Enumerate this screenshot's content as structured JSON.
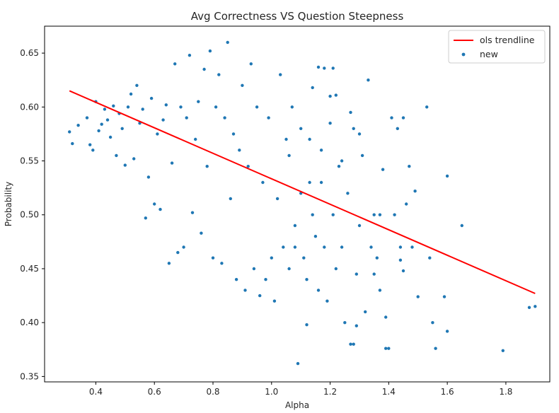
{
  "chart_data": {
    "type": "scatter",
    "title": "Avg Correctness VS Question Steepness",
    "xlabel": "Alpha",
    "ylabel": "Probability",
    "xlim": [
      0.225,
      1.95
    ],
    "ylim": [
      0.345,
      0.675
    ],
    "xticks": [
      0.4,
      0.6,
      0.8,
      1.0,
      1.2,
      1.4,
      1.6,
      1.8
    ],
    "xtick_labels": [
      "0.4",
      "0.6",
      "0.8",
      "1.0",
      "1.2",
      "1.4",
      "1.6",
      "1.8"
    ],
    "yticks": [
      0.35,
      0.4,
      0.45,
      0.5,
      0.55,
      0.6,
      0.65
    ],
    "ytick_labels": [
      "0.35",
      "0.40",
      "0.45",
      "0.50",
      "0.55",
      "0.60",
      "0.65"
    ],
    "grid": false,
    "legend_position": "top-right",
    "series": [
      {
        "name": "ols trendline",
        "kind": "line",
        "color": "#ff0000",
        "x": [
          0.31,
          1.9
        ],
        "y": [
          0.615,
          0.427
        ]
      },
      {
        "name": "new",
        "kind": "scatter",
        "color": "#1f77b4",
        "points": [
          [
            0.31,
            0.577
          ],
          [
            0.32,
            0.566
          ],
          [
            0.34,
            0.583
          ],
          [
            0.37,
            0.59
          ],
          [
            0.38,
            0.565
          ],
          [
            0.39,
            0.56
          ],
          [
            0.4,
            0.605
          ],
          [
            0.41,
            0.578
          ],
          [
            0.42,
            0.584
          ],
          [
            0.43,
            0.598
          ],
          [
            0.44,
            0.588
          ],
          [
            0.45,
            0.572
          ],
          [
            0.46,
            0.601
          ],
          [
            0.47,
            0.555
          ],
          [
            0.48,
            0.594
          ],
          [
            0.49,
            0.58
          ],
          [
            0.5,
            0.546
          ],
          [
            0.51,
            0.6
          ],
          [
            0.52,
            0.612
          ],
          [
            0.53,
            0.552
          ],
          [
            0.54,
            0.62
          ],
          [
            0.55,
            0.585
          ],
          [
            0.56,
            0.598
          ],
          [
            0.57,
            0.497
          ],
          [
            0.58,
            0.535
          ],
          [
            0.59,
            0.608
          ],
          [
            0.6,
            0.51
          ],
          [
            0.61,
            0.575
          ],
          [
            0.62,
            0.505
          ],
          [
            0.63,
            0.588
          ],
          [
            0.64,
            0.602
          ],
          [
            0.65,
            0.455
          ],
          [
            0.66,
            0.548
          ],
          [
            0.67,
            0.64
          ],
          [
            0.68,
            0.465
          ],
          [
            0.69,
            0.6
          ],
          [
            0.7,
            0.47
          ],
          [
            0.71,
            0.59
          ],
          [
            0.72,
            0.648
          ],
          [
            0.73,
            0.502
          ],
          [
            0.74,
            0.57
          ],
          [
            0.75,
            0.605
          ],
          [
            0.76,
            0.483
          ],
          [
            0.77,
            0.635
          ],
          [
            0.78,
            0.545
          ],
          [
            0.79,
            0.652
          ],
          [
            0.8,
            0.46
          ],
          [
            0.81,
            0.6
          ],
          [
            0.82,
            0.63
          ],
          [
            0.83,
            0.455
          ],
          [
            0.84,
            0.59
          ],
          [
            0.85,
            0.66
          ],
          [
            0.86,
            0.515
          ],
          [
            0.87,
            0.575
          ],
          [
            0.88,
            0.44
          ],
          [
            0.89,
            0.56
          ],
          [
            0.9,
            0.62
          ],
          [
            0.91,
            0.43
          ],
          [
            0.92,
            0.545
          ],
          [
            0.93,
            0.64
          ],
          [
            0.94,
            0.45
          ],
          [
            0.95,
            0.6
          ],
          [
            0.96,
            0.425
          ],
          [
            0.97,
            0.53
          ],
          [
            0.98,
            0.44
          ],
          [
            0.99,
            0.59
          ],
          [
            1.0,
            0.46
          ],
          [
            1.01,
            0.42
          ],
          [
            1.02,
            0.515
          ],
          [
            1.03,
            0.63
          ],
          [
            1.04,
            0.47
          ],
          [
            1.05,
            0.57
          ],
          [
            1.06,
            0.45
          ],
          [
            1.07,
            0.6
          ],
          [
            1.08,
            0.49
          ],
          [
            1.09,
            0.362
          ],
          [
            1.1,
            0.52
          ],
          [
            1.11,
            0.46
          ],
          [
            1.12,
            0.398
          ],
          [
            1.13,
            0.53
          ],
          [
            1.14,
            0.618
          ],
          [
            1.15,
            0.48
          ],
          [
            1.16,
            0.43
          ],
          [
            1.17,
            0.56
          ],
          [
            1.18,
            0.47
          ],
          [
            1.19,
            0.42
          ],
          [
            1.2,
            0.61
          ],
          [
            1.21,
            0.5
          ],
          [
            1.22,
            0.45
          ],
          [
            1.23,
            0.545
          ],
          [
            1.24,
            0.47
          ],
          [
            1.25,
            0.4
          ],
          [
            1.26,
            0.52
          ],
          [
            1.27,
            0.38
          ],
          [
            1.28,
            0.58
          ],
          [
            1.29,
            0.445
          ],
          [
            1.3,
            0.49
          ],
          [
            1.31,
            0.555
          ],
          [
            1.32,
            0.41
          ],
          [
            1.33,
            0.625
          ],
          [
            1.34,
            0.47
          ],
          [
            1.35,
            0.5
          ],
          [
            1.36,
            0.46
          ],
          [
            1.37,
            0.43
          ],
          [
            1.38,
            0.542
          ],
          [
            1.39,
            0.405
          ],
          [
            1.4,
            0.376
          ],
          [
            1.41,
            0.59
          ],
          [
            1.42,
            0.5
          ],
          [
            1.43,
            0.58
          ],
          [
            1.44,
            0.47
          ],
          [
            1.45,
            0.448
          ],
          [
            1.46,
            0.51
          ],
          [
            1.47,
            0.545
          ],
          [
            1.48,
            0.47
          ],
          [
            1.49,
            0.522
          ],
          [
            1.5,
            0.424
          ],
          [
            1.53,
            0.6
          ],
          [
            1.54,
            0.46
          ],
          [
            1.55,
            0.4
          ],
          [
            1.56,
            0.376
          ],
          [
            1.59,
            0.424
          ],
          [
            1.6,
            0.392
          ],
          [
            1.6,
            0.536
          ],
          [
            1.65,
            0.49
          ],
          [
            1.79,
            0.374
          ],
          [
            1.88,
            0.414
          ],
          [
            1.9,
            0.415
          ],
          [
            1.16,
            0.637
          ],
          [
            1.18,
            0.636
          ],
          [
            1.22,
            0.611
          ],
          [
            1.27,
            0.595
          ],
          [
            1.21,
            0.636
          ],
          [
            1.39,
            0.376
          ],
          [
            1.28,
            0.38
          ],
          [
            1.29,
            0.397
          ],
          [
            1.08,
            0.47
          ],
          [
            1.12,
            0.44
          ],
          [
            1.14,
            0.5
          ],
          [
            1.06,
            0.555
          ],
          [
            1.3,
            0.575
          ],
          [
            1.35,
            0.445
          ],
          [
            1.37,
            0.5
          ],
          [
            1.45,
            0.59
          ],
          [
            1.44,
            0.458
          ],
          [
            1.13,
            0.57
          ],
          [
            1.2,
            0.585
          ],
          [
            1.24,
            0.55
          ],
          [
            1.17,
            0.53
          ],
          [
            1.1,
            0.58
          ]
        ]
      }
    ]
  }
}
